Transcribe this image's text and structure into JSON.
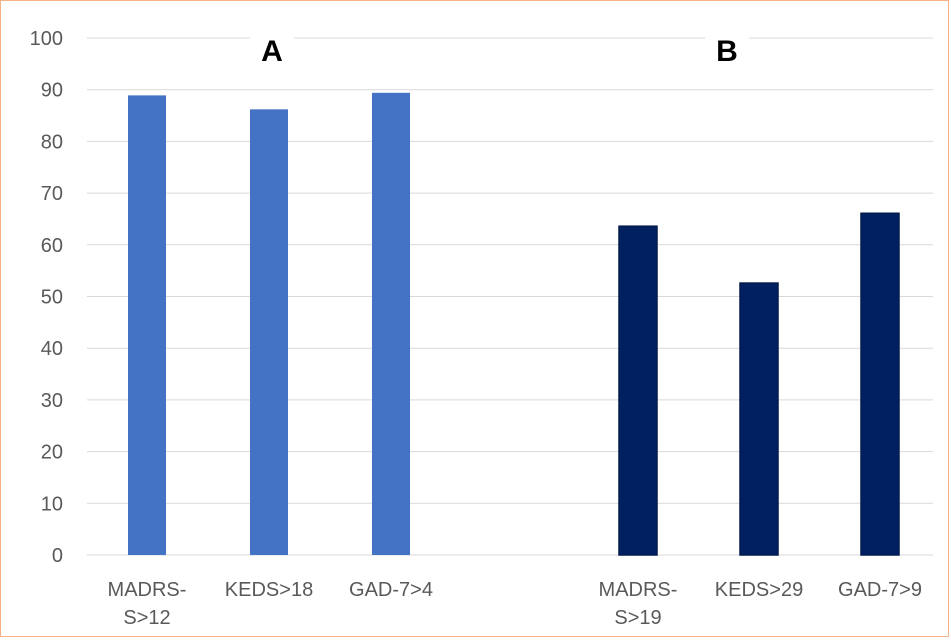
{
  "chart_data": {
    "type": "bar",
    "ylim": [
      0,
      100
    ],
    "yticks": [
      0,
      10,
      20,
      30,
      40,
      50,
      60,
      70,
      80,
      90,
      100
    ],
    "grid": true,
    "panels": [
      {
        "label": "A",
        "color": "#4472c4",
        "categories": [
          [
            "MADRS-",
            "S>12"
          ],
          [
            "KEDS>18"
          ],
          [
            "GAD-7>4"
          ]
        ],
        "values": [
          88.9,
          86.2,
          89.4
        ]
      },
      {
        "label": "B",
        "color": "#002060",
        "categories": [
          [
            "MADRS-",
            "S>19"
          ],
          [
            "KEDS>29"
          ],
          [
            "GAD-7>9"
          ]
        ],
        "values": [
          63.6,
          52.6,
          66.1
        ]
      }
    ]
  }
}
